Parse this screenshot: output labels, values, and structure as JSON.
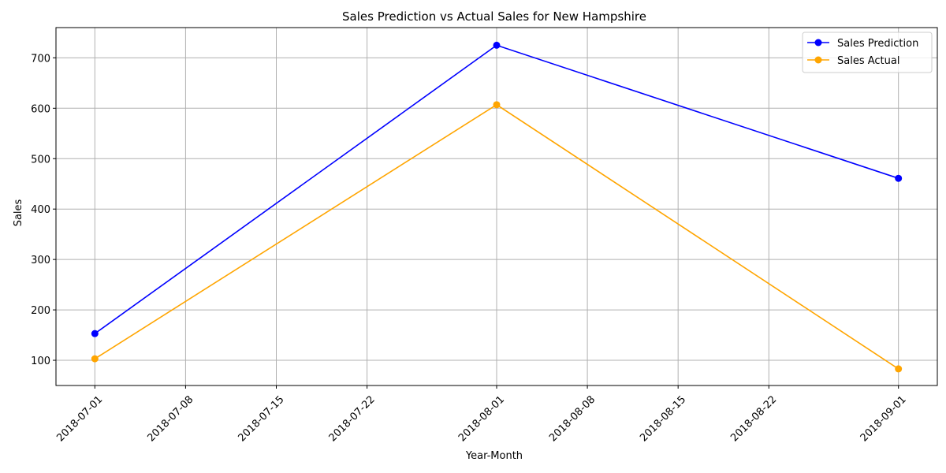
{
  "chart_data": {
    "type": "line",
    "title": "Sales Prediction vs Actual Sales for New Hampshire",
    "xlabel": "Year-Month",
    "ylabel": "Sales",
    "x": [
      "2018-07-01",
      "2018-08-01",
      "2018-09-01"
    ],
    "x_ticks": [
      "2018-07-01",
      "2018-07-08",
      "2018-07-15",
      "2018-07-22",
      "2018-08-01",
      "2018-08-08",
      "2018-08-15",
      "2018-08-22",
      "2018-09-01"
    ],
    "y_ticks": [
      100,
      200,
      300,
      400,
      500,
      600,
      700
    ],
    "xlim": [
      "2018-06-28",
      "2018-09-04"
    ],
    "ylim": [
      50,
      760
    ],
    "grid": true,
    "legend_position": "top-right",
    "series": [
      {
        "name": "Sales Prediction",
        "color": "#0000ff",
        "values": [
          153,
          725,
          461
        ]
      },
      {
        "name": "Sales Actual",
        "color": "#ffa500",
        "values": [
          103,
          607,
          83
        ]
      }
    ]
  }
}
